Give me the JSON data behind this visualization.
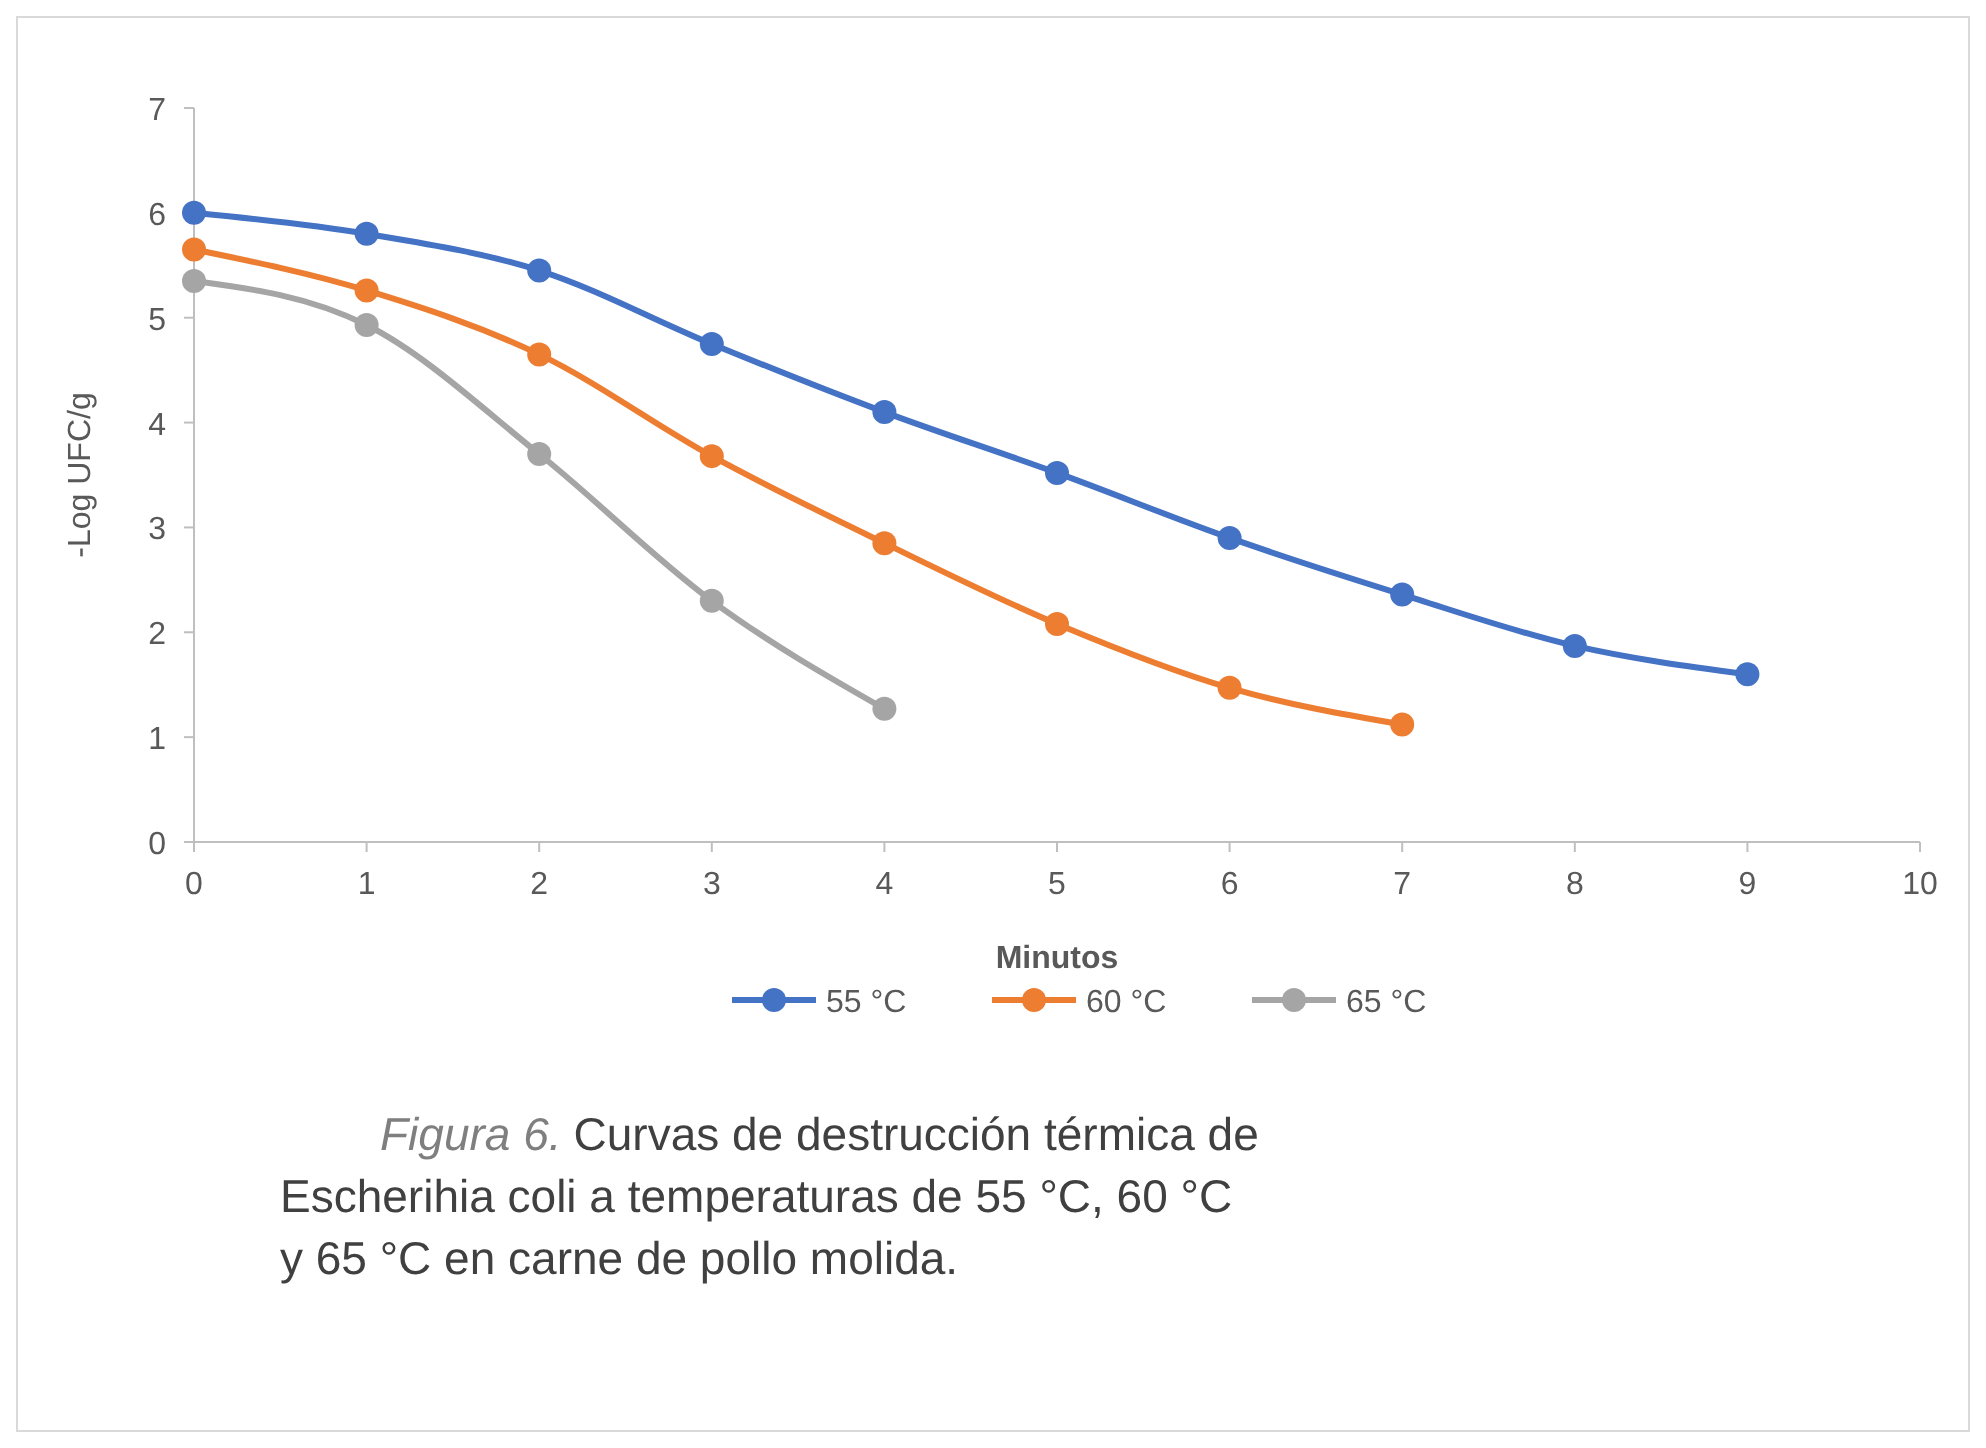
{
  "chart_data": {
    "type": "line",
    "xlabel": "Minutos",
    "ylabel": "-Log UFC/g",
    "xlim": [
      0,
      10
    ],
    "xticks": [
      0,
      1,
      2,
      3,
      4,
      5,
      6,
      7,
      8,
      9,
      10
    ],
    "ylim": [
      0,
      7
    ],
    "yticks": [
      0,
      1,
      2,
      3,
      4,
      5,
      6,
      7
    ],
    "grid": false,
    "legend": "bottom",
    "marker": "circle",
    "line_style": "solid",
    "series": [
      {
        "name": "55 °C",
        "color": "#4472c4",
        "x": [
          0,
          1,
          2,
          3,
          4,
          5,
          6,
          7,
          8,
          9
        ],
        "values": [
          6.0,
          5.8,
          5.45,
          4.75,
          4.1,
          3.52,
          2.9,
          2.36,
          1.87,
          1.6
        ]
      },
      {
        "name": "60 °C",
        "color": "#ed7d31",
        "x": [
          0,
          1,
          2,
          3,
          4,
          5,
          6,
          7
        ],
        "values": [
          5.65,
          5.26,
          4.65,
          3.68,
          2.85,
          2.08,
          1.47,
          1.12
        ]
      },
      {
        "name": "65 °C",
        "color": "#a5a5a5",
        "x": [
          0,
          1,
          2,
          3,
          4
        ],
        "values": [
          5.35,
          4.93,
          3.7,
          2.3,
          1.27
        ]
      }
    ],
    "annotations": [
      "Figura 6.",
      "Curvas de destrucción térmica de Escherihia coli a temperaturas de 55 °C, 60 °C y 65 °C en carne de pollo molida."
    ]
  }
}
